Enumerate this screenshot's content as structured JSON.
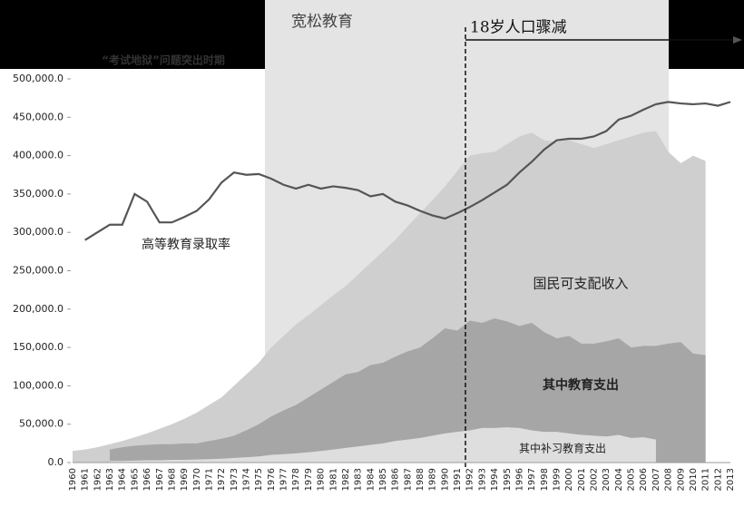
{
  "chart_data": {
    "type": "area_line",
    "categories": [
      "1960",
      "1961",
      "1962",
      "1963",
      "1964",
      "1965",
      "1966",
      "1967",
      "1968",
      "1969",
      "1970",
      "1971",
      "1972",
      "1973",
      "1974",
      "1975",
      "1976",
      "1977",
      "1978",
      "1979",
      "1980",
      "1981",
      "1982",
      "1983",
      "1984",
      "1985",
      "1986",
      "1987",
      "1988",
      "1989",
      "1990",
      "1991",
      "1992",
      "1993",
      "1994",
      "1995",
      "1996",
      "1997",
      "1998",
      "1999",
      "2000",
      "2001",
      "2002",
      "2003",
      "2004",
      "2005",
      "2006",
      "2007",
      "2008",
      "2009",
      "2010",
      "2011",
      "2012",
      "2013"
    ],
    "series": [
      {
        "name": "国民可支配收入",
        "kind": "area",
        "color": "#cfcfcf",
        "values": [
          15000,
          17000,
          20000,
          24000,
          28000,
          33000,
          38000,
          44000,
          50000,
          57000,
          65000,
          75000,
          85000,
          100000,
          115000,
          130000,
          150000,
          165000,
          180000,
          192000,
          205000,
          218000,
          230000,
          245000,
          260000,
          275000,
          290000,
          308000,
          325000,
          342000,
          360000,
          380000,
          400000,
          403000,
          405000,
          415000,
          425000,
          430000,
          420000,
          418000,
          420000,
          415000,
          410000,
          415000,
          420000,
          425000,
          430000,
          432000,
          405000,
          390000,
          400000,
          393000,
          null,
          null
        ]
      },
      {
        "name": "其中教育支出",
        "kind": "area",
        "color": "#a6a6a6",
        "values": [
          null,
          null,
          null,
          17000,
          20000,
          22000,
          23000,
          24000,
          24000,
          25000,
          25000,
          28000,
          31000,
          35000,
          42000,
          50000,
          60000,
          68000,
          75000,
          85000,
          95000,
          105000,
          115000,
          118000,
          127000,
          130000,
          138000,
          145000,
          150000,
          162000,
          175000,
          172000,
          185000,
          182000,
          188000,
          184000,
          178000,
          182000,
          170000,
          162000,
          165000,
          155000,
          155000,
          158000,
          162000,
          150000,
          152000,
          152000,
          155000,
          157000,
          142000,
          140000,
          null,
          null
        ]
      },
      {
        "name": "其中补习教育支出",
        "kind": "area",
        "color": "#dedede",
        "values": [
          null,
          null,
          null,
          2000,
          2000,
          2500,
          3000,
          3000,
          3500,
          3500,
          4000,
          4500,
          5000,
          6000,
          7000,
          8000,
          10000,
          11000,
          12000,
          13500,
          15000,
          17000,
          19000,
          21000,
          23000,
          25000,
          28000,
          30000,
          32000,
          35000,
          38000,
          40000,
          42000,
          45000,
          45000,
          46000,
          45000,
          42000,
          40000,
          40000,
          38000,
          36000,
          35000,
          34000,
          36000,
          32000,
          33000,
          30000,
          null,
          null,
          null,
          null,
          null,
          null
        ]
      },
      {
        "name": "高等教育录取率",
        "kind": "line",
        "color": "#555555",
        "values": [
          null,
          290000,
          300000,
          310000,
          310000,
          350000,
          340000,
          313000,
          313000,
          320000,
          328000,
          343000,
          365000,
          378000,
          375000,
          376000,
          370000,
          362000,
          357000,
          362000,
          357000,
          360000,
          358000,
          355000,
          347000,
          350000,
          340000,
          335000,
          328000,
          322000,
          318000,
          325000,
          333000,
          342000,
          352000,
          362000,
          378000,
          392000,
          408000,
          420000,
          422000,
          422000,
          425000,
          432000,
          447000,
          452000,
          460000,
          467000,
          470000,
          468000,
          467000,
          468000,
          465000,
          470000
        ]
      }
    ],
    "ylim": [
      0,
      500000
    ],
    "yticks": [
      {
        "value": 0,
        "label": "0.0"
      },
      {
        "value": 50000,
        "label": "50,000.0"
      },
      {
        "value": 100000,
        "label": "100,000.0"
      },
      {
        "value": 150000,
        "label": "150,000.0"
      },
      {
        "value": 200000,
        "label": "200,000.0"
      },
      {
        "value": 250000,
        "label": "250,000.0"
      },
      {
        "value": 300000,
        "label": "300,000.0"
      },
      {
        "value": 350000,
        "label": "350,000.0"
      },
      {
        "value": 400000,
        "label": "400,000.0"
      },
      {
        "value": 450000,
        "label": "450,000.0"
      },
      {
        "value": 500000,
        "label": "500,000.0"
      }
    ],
    "annotations": [
      "宽松教育",
      "“考试地狱”问题突出时期",
      "18岁人口骤减"
    ]
  }
}
